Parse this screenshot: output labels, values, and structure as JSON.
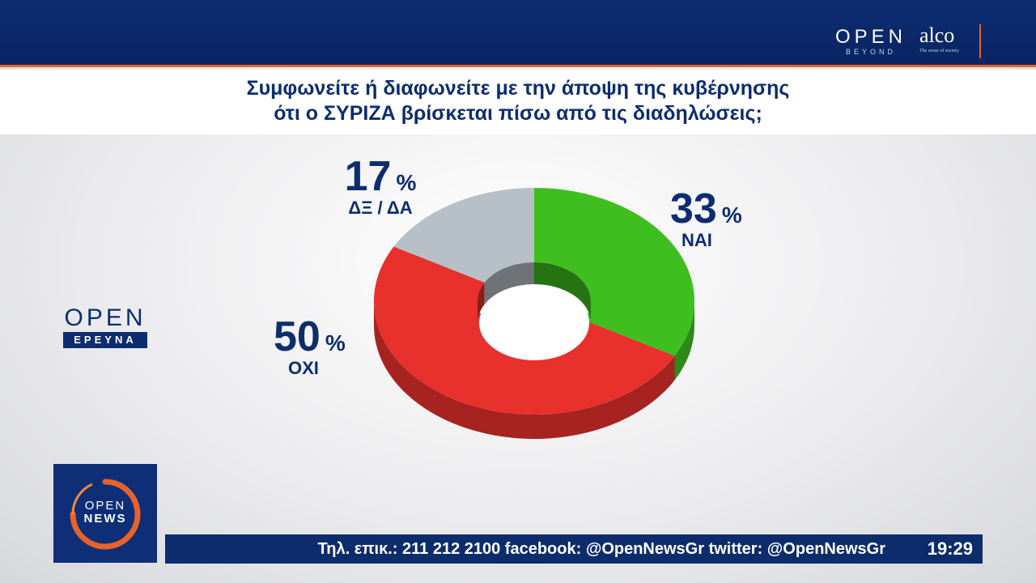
{
  "header": {
    "channel_logo": "OPEN",
    "channel_logo_sub": "BEYOND",
    "pollster_logo": "alco",
    "pollster_tagline": "The sense of society"
  },
  "question": {
    "line1": "Συμφωνείτε ή διαφωνείτε με την άποψη της κυβέρνησης",
    "line2": "ότι ο ΣΥΡΙΖΑ βρίσκεται πίσω από τις διαδηλώσεις;"
  },
  "side_logo": {
    "word": "OPEN",
    "tag": "ΕΡΕΥΝΑ"
  },
  "chart_data": {
    "type": "pie",
    "style": "3d-donut",
    "unit": "%",
    "slices": [
      {
        "label": "ΝΑΙ",
        "value": 33,
        "value_text": "33",
        "color": "#3fbf1f"
      },
      {
        "label": "ΟΧΙ",
        "value": 50,
        "value_text": "50",
        "color": "#e8302c"
      },
      {
        "label": "ΔΞ / ΔΑ",
        "value": 17,
        "value_text": "17",
        "color": "#b7c0c6"
      }
    ]
  },
  "news_logo": {
    "line1": "OPEN",
    "line2": "NEWS"
  },
  "ticker": {
    "text": "Τηλ. επικ.: 211 212 2100 facebook: @OpenNewsGr twitter: @OpenNewsGr",
    "time": "19:29"
  },
  "colors": {
    "navy": "#0d2d6e",
    "accent_orange": "#e8622a"
  }
}
